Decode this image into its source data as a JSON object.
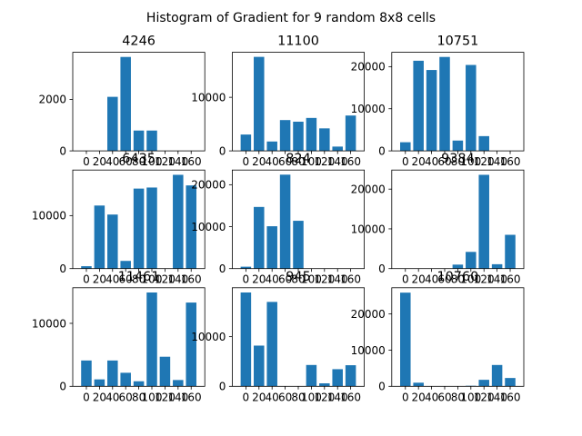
{
  "figure": {
    "suptitle": "Histogram of Gradient for 9 random 8x8 cells"
  },
  "colors": {
    "bar": "#1f77b4",
    "axis": "#000000",
    "background": "#ffffff"
  },
  "chart_data": [
    {
      "type": "bar",
      "title": "4246",
      "categories": [
        "0",
        "20",
        "40",
        "60",
        "80",
        "100",
        "120",
        "140",
        "160"
      ],
      "values": [
        0,
        0,
        2100,
        3650,
        790,
        790,
        0,
        0,
        0
      ],
      "ylim": [
        0,
        3830
      ],
      "yticks": [
        0,
        2000
      ],
      "grid": false
    },
    {
      "type": "bar",
      "title": "11100",
      "categories": [
        "0",
        "20",
        "40",
        "60",
        "80",
        "100",
        "120",
        "140",
        "160"
      ],
      "values": [
        3050,
        17550,
        1750,
        5750,
        5450,
        6150,
        4200,
        800,
        6600
      ],
      "ylim": [
        0,
        18400
      ],
      "yticks": [
        0,
        10000
      ],
      "grid": false
    },
    {
      "type": "bar",
      "title": "10751",
      "categories": [
        "0",
        "20",
        "40",
        "60",
        "80",
        "100",
        "120",
        "140",
        "160"
      ],
      "values": [
        2050,
        21400,
        19200,
        22300,
        2450,
        20400,
        3500,
        0,
        0
      ],
      "ylim": [
        0,
        23400
      ],
      "yticks": [
        0,
        10000,
        20000
      ],
      "grid": false
    },
    {
      "type": "bar",
      "title": "6435",
      "categories": [
        "0",
        "20",
        "40",
        "60",
        "80",
        "100",
        "120",
        "140",
        "160"
      ],
      "values": [
        450,
        11900,
        10200,
        1450,
        15100,
        15300,
        0,
        17700,
        15700
      ],
      "ylim": [
        0,
        18600
      ],
      "yticks": [
        0,
        10000
      ],
      "grid": false
    },
    {
      "type": "bar",
      "title": "824",
      "categories": [
        "0",
        "20",
        "40",
        "60",
        "80",
        "100",
        "120",
        "140",
        "160"
      ],
      "values": [
        450,
        14700,
        10100,
        22400,
        11400,
        0,
        0,
        0,
        0
      ],
      "ylim": [
        0,
        23500
      ],
      "yticks": [
        0,
        10000,
        20000
      ],
      "grid": false
    },
    {
      "type": "bar",
      "title": "9384",
      "categories": [
        "0",
        "20",
        "40",
        "60",
        "80",
        "100",
        "120",
        "140",
        "160"
      ],
      "values": [
        0,
        0,
        0,
        0,
        1000,
        4200,
        23600,
        1100,
        8500
      ],
      "ylim": [
        0,
        24800
      ],
      "yticks": [
        0,
        10000,
        20000
      ],
      "grid": false
    },
    {
      "type": "bar",
      "title": "11461",
      "categories": [
        "0",
        "20",
        "40",
        "60",
        "80",
        "100",
        "120",
        "140",
        "160"
      ],
      "values": [
        4100,
        1100,
        4100,
        2150,
        800,
        14900,
        4700,
        1000,
        13300
      ],
      "ylim": [
        0,
        15650
      ],
      "yticks": [
        0,
        10000
      ],
      "grid": false
    },
    {
      "type": "bar",
      "title": "945",
      "categories": [
        "0",
        "20",
        "40",
        "60",
        "80",
        "100",
        "120",
        "140",
        "160"
      ],
      "values": [
        18900,
        8200,
        17000,
        0,
        0,
        4300,
        600,
        3450,
        4250
      ],
      "ylim": [
        0,
        19850
      ],
      "yticks": [
        0,
        10000
      ],
      "grid": false
    },
    {
      "type": "bar",
      "title": "10760",
      "categories": [
        "0",
        "20",
        "40",
        "60",
        "80",
        "100",
        "120",
        "140",
        "160"
      ],
      "values": [
        25900,
        1000,
        0,
        0,
        0,
        150,
        1800,
        5900,
        2300
      ],
      "ylim": [
        0,
        27250
      ],
      "yticks": [
        0,
        10000,
        20000
      ],
      "grid": false
    }
  ]
}
